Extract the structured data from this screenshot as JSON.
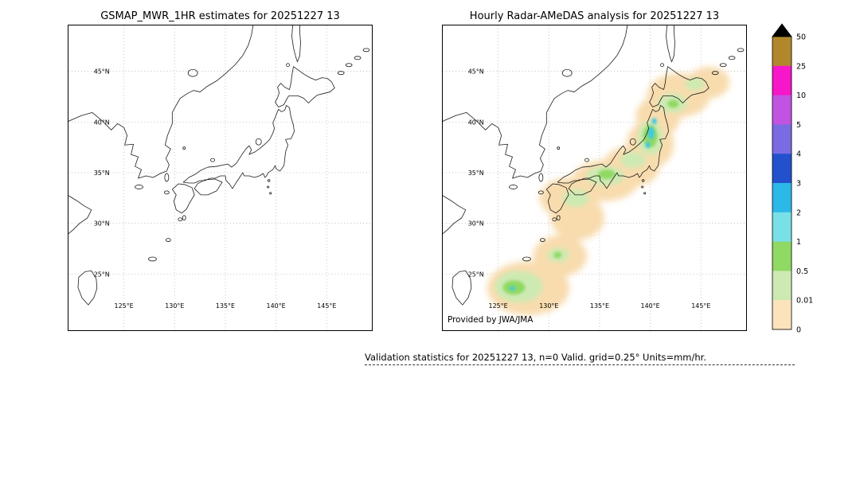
{
  "figure": {
    "caption": "Validation statistics for 20251227 13, n=0 Valid. grid=0.25° Units=mm/hr."
  },
  "panels": [
    {
      "id": "gsmap",
      "title": "GSMAP_MWR_1HR estimates for 20251227 13",
      "lat_labels": [
        "45°N",
        "40°N",
        "35°N",
        "30°N",
        "25°N"
      ],
      "lon_labels": [
        "125°E",
        "130°E",
        "135°E",
        "140°E",
        "145°E"
      ],
      "credit": "",
      "has_precip": false
    },
    {
      "id": "radar-amedas",
      "title": "Hourly Radar-AMeDAS analysis for 20251227 13",
      "lat_labels": [
        "45°N",
        "40°N",
        "35°N",
        "30°N",
        "25°N"
      ],
      "lon_labels": [
        "125°E",
        "130°E",
        "135°E",
        "140°E",
        "145°E"
      ],
      "credit": "Provided by JWA/JMA",
      "has_precip": true
    }
  ],
  "colorbar": {
    "tick_labels": [
      "50",
      "25",
      "10",
      "5",
      "4",
      "3",
      "2",
      "1",
      "0.5",
      "0.01",
      "0"
    ],
    "segment_colors_top_to_bottom": [
      "#b1872c",
      "#f716c9",
      "#c253e2",
      "#7a6be2",
      "#2351cd",
      "#2bb9e8",
      "#79e0e8",
      "#8fd964",
      "#cdeab2",
      "#fbe3bb"
    ],
    "overflow_color": "#000000"
  },
  "map_geometry": {
    "grid_lon_x": [
      70,
      134,
      198,
      262,
      326
    ],
    "grid_lat_y": [
      58,
      122,
      186,
      250,
      314
    ],
    "coastline_paths": [
      "M 0 121 L 16 114 L 30 110 L 42 120 L 54 132 L 62 124 L 70 129 L 74 139 L 71 151 L 82 150 L 79 163 L 88 166 L 84 178 L 92 182 L 88 193 L 98 190 L 107 192 L 116 187 L 124 184 L 127 176 L 123 168 L 129 156 L 122 151 L 125 139 L 131 124 L 131 110 L 137 99 L 141 92 L 150 86 L 158 82 L 166 84 L 175 77 L 187 70 L 198 61 L 210 50 L 220 38 L 227 25 L 231 12 L 233 0",
      "M 0 215 L 10 221 L 20 228 L 29 233 L 24 243 L 14 250 L 6 258 L 0 263",
      "M 29 310 L 35 320 L 36 332 L 32 344 L 25 353 L 17 344 L 12 331 L 13 318 L 21 311 Z",
      "M 139 200 L 131 207 L 136 214 L 133 222 L 136 233 L 143 237 L 149 232 L 153 224 L 159 214 L 156 205 L 147 201 Z",
      "M 159 206 L 167 214 L 176 214 L 187 209 L 194 198 L 185 194 L 172 195 L 163 200 Z",
      "M 145 198 L 152 192 L 160 188 L 167 183 L 176 179 L 187 178 L 196 176 L 201 175 L 206 179 L 212 174 L 219 163 L 224 156 L 228 152 L 231 157 L 228 163 L 235 160 L 242 155 L 249 149 L 254 144 L 258 136 L 260 130 L 258 123 L 261 116 L 265 106 L 269 109 L 273 107 L 275 101 L 279 104 L 280 111 L 281 116 L 284 126 L 285 134 L 281 143 L 274 144 L 277 151 L 274 160 L 273 169 L 272 177 L 267 184 L 262 181 L 261 177 L 258 182 L 252 186 L 250 190 L 248 192 L 246 187 L 241 190 L 235 192 L 228 190 L 222 190 L 220 186 L 216 192 L 212 198 L 207 206 L 203 200 L 199 196 L 198 190 L 192 190 L 185 193 L 179 193 L 172 196 L 166 196 L 159 199 L 152 199 Z",
      "M 265 103 L 261 97 L 264 91 L 266 85 L 264 78 L 268 73 L 273 78 L 279 81 L 281 72 L 282 63 L 284 52 L 291 57 L 298 62 L 305 66 L 312 69 L 320 66 L 327 67 L 332 71 L 336 79 L 330 84 L 322 86 L 314 88 L 308 93 L 303 98 L 297 92 L 290 89 L 283 89 L 278 89 L 275 94 L 272 100 Z",
      "M 283 0 L 282 14 L 284 28 L 287 40 L 289 46 L 292 38 L 293 22 L 292 8 L 292 0"
    ],
    "islands": [
      [
        157,
        60,
        6,
        4.5
      ],
      [
        124,
        192,
        2.5,
        5
      ],
      [
        89,
        204,
        5,
        2.5
      ],
      [
        126,
        271,
        3,
        2
      ],
      [
        106,
        295,
        5,
        2.5
      ],
      [
        141,
        245,
        2.5,
        2
      ],
      [
        146,
        243,
        2,
        3
      ],
      [
        240,
        147,
        3.5,
        4
      ],
      [
        182,
        170,
        2.5,
        2
      ],
      [
        146,
        155,
        1.5,
        1.5
      ],
      [
        253,
        196,
        1.3,
        1.3
      ],
      [
        252,
        204,
        1.1,
        1.1
      ],
      [
        255,
        212,
        1.1,
        1.1
      ],
      [
        124,
        211,
        3,
        2
      ],
      [
        277,
        50,
        2,
        2
      ],
      [
        344,
        60,
        4,
        2
      ],
      [
        354,
        50,
        4,
        2
      ],
      [
        365,
        41,
        4,
        2
      ],
      [
        376,
        31,
        4,
        2
      ]
    ]
  },
  "precip_layers": [
    {
      "name": "trace-0-0.5mm",
      "color": "#f8dcae",
      "blur": 4,
      "blobs": [
        [
          108,
          332,
          52,
          34
        ],
        [
          148,
          291,
          34,
          26
        ],
        [
          170,
          243,
          34,
          28
        ],
        [
          160,
          218,
          38,
          26
        ],
        [
          205,
          196,
          42,
          26
        ],
        [
          238,
          178,
          36,
          26
        ],
        [
          262,
          150,
          30,
          30
        ],
        [
          272,
          115,
          28,
          26
        ],
        [
          298,
          88,
          40,
          28
        ],
        [
          336,
          72,
          26,
          20
        ]
      ]
    },
    {
      "name": "light-0.01-0.5mm",
      "color": "#cdeab2",
      "blur": 3,
      "blobs": [
        [
          96,
          330,
          30,
          20
        ],
        [
          146,
          290,
          14,
          9
        ],
        [
          168,
          218,
          16,
          11
        ],
        [
          205,
          190,
          24,
          12
        ],
        [
          240,
          170,
          16,
          10
        ],
        [
          262,
          142,
          16,
          22
        ],
        [
          290,
          98,
          18,
          12
        ],
        [
          318,
          74,
          12,
          8
        ]
      ]
    },
    {
      "name": "moderate-0.5-1mm",
      "color": "#8fd964",
      "blur": 2,
      "blobs": [
        [
          90,
          331,
          14,
          9
        ],
        [
          207,
          188,
          11,
          6
        ],
        [
          262,
          140,
          9,
          14
        ],
        [
          291,
          99,
          7,
          5
        ],
        [
          145,
          290,
          5,
          4
        ]
      ]
    },
    {
      "name": "heavier-2-3mm",
      "color": "#3cc8e6",
      "blur": 1.5,
      "blobs": [
        [
          263,
          136,
          4,
          8
        ],
        [
          267,
          121,
          3,
          4
        ],
        [
          259,
          151,
          3,
          4
        ],
        [
          88,
          332,
          3.5,
          2.5
        ]
      ]
    }
  ]
}
